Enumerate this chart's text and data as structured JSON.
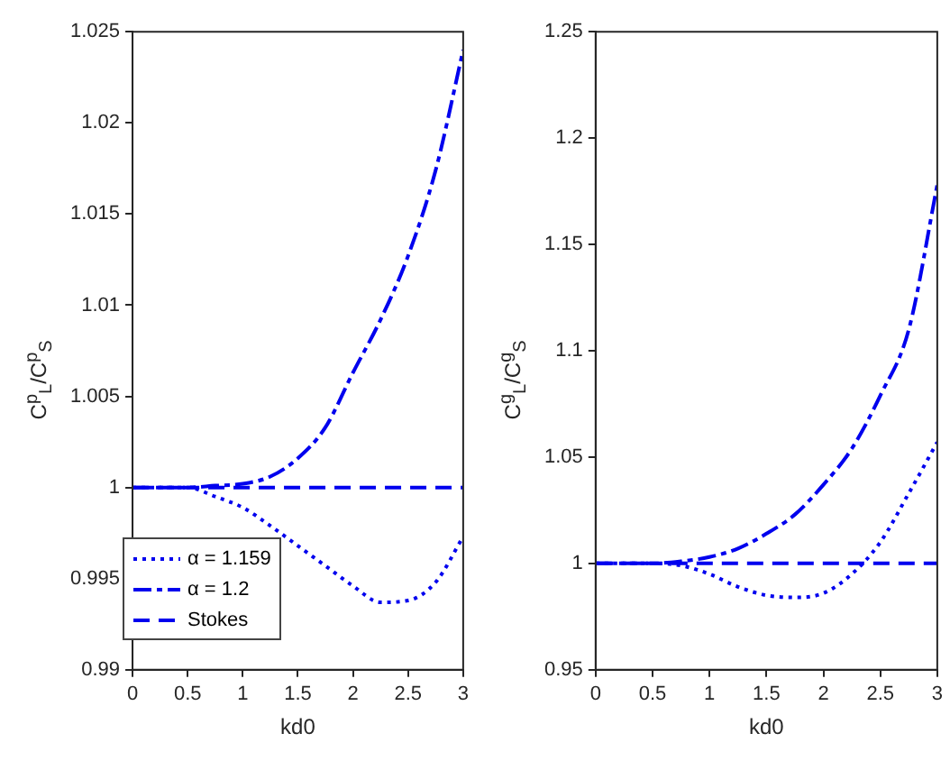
{
  "chart_data": [
    {
      "type": "line",
      "xlabel": "kd0",
      "ylabel": "C$^{p}$$_{L}$/C$^{p}$$_{S}$",
      "x": [
        0,
        0.25,
        0.5,
        0.75,
        1,
        1.25,
        1.5,
        1.75,
        2,
        2.25,
        2.5,
        2.75,
        3
      ],
      "series": [
        {
          "name": "α = 1.159",
          "color": "#0000ee",
          "line_style": "dotted",
          "values": [
            1,
            1,
            1,
            0.9995,
            0.9989,
            0.9979,
            0.9968,
            0.9957,
            0.9946,
            0.9937,
            0.9938,
            0.9948,
            0.9973
          ]
        },
        {
          "name": "α = 1.2",
          "color": "#0000ee",
          "line_style": "dashed",
          "values": [
            1,
            1,
            1,
            1.0001,
            1.0002,
            1.0006,
            1.0016,
            1.0033,
            1.0063,
            1.0092,
            1.0127,
            1.0174,
            1.024
          ]
        },
        {
          "name": "Stokes",
          "color": "#0000ee",
          "line_style": "dashed",
          "values": [
            1,
            1,
            1,
            1,
            1,
            1,
            1,
            1,
            1,
            1,
            1,
            1,
            1
          ]
        }
      ],
      "xlim": [
        0,
        3
      ],
      "xticks": [
        0,
        0.5,
        1,
        1.5,
        2,
        2.5,
        3
      ],
      "ylim": [
        0.99,
        1.025
      ],
      "yticks": [
        0.99,
        0.995,
        1,
        1.005,
        1.01,
        1.015,
        1.02,
        1.025
      ],
      "grid": false,
      "legend": "bottom left",
      "marker": "none"
    },
    {
      "type": "line",
      "xlabel": "kd0",
      "ylabel": "C$^{g}$$_{L}$/C$^{g}$$_{S}$",
      "x": [
        0,
        0.25,
        0.5,
        0.75,
        1,
        1.25,
        1.5,
        1.75,
        2,
        2.25,
        2.5,
        2.75,
        3
      ],
      "series": [
        {
          "color": "#0000ee",
          "line_style": "dotted",
          "values": [
            1,
            1,
            1,
            0.999,
            0.995,
            0.989,
            0.985,
            0.984,
            0.986,
            0.995,
            1.01,
            1.033,
            1.057
          ]
        },
        {
          "color": "#0000ee",
          "line_style": "dashed",
          "values": [
            1,
            1,
            1,
            1.001,
            1.003,
            1.007,
            1.014,
            1.023,
            1.037,
            1.054,
            1.079,
            1.11,
            1.178
          ]
        },
        {
          "color": "#0000ee",
          "line_style": "dashed",
          "values": [
            1,
            1,
            1,
            1,
            1,
            1,
            1,
            1,
            1,
            1,
            1,
            1,
            1
          ]
        }
      ],
      "xlim": [
        0,
        3
      ],
      "xticks": [
        0,
        0.5,
        1,
        1.5,
        2,
        2.5,
        3
      ],
      "ylim": [
        0.95,
        1.25
      ],
      "yticks": [
        0.95,
        1,
        1.05,
        1.1,
        1.15,
        1.2,
        1.25
      ],
      "grid": false,
      "legend": false,
      "marker": "none"
    }
  ]
}
